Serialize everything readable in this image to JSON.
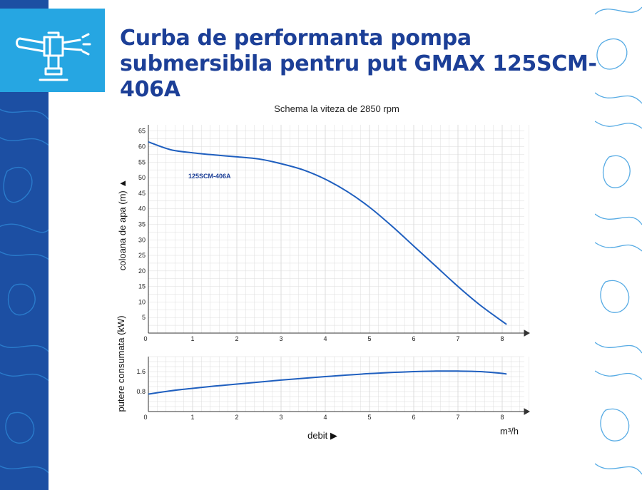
{
  "header": {
    "title_line1": "Curba de performanta pompa",
    "title_line2": "submersibila pentru put GMAX 125SCM-406A",
    "icon": "water-pump-sprinkler-icon"
  },
  "colors": {
    "title": "#1c3f97",
    "left_band": "#1c4fa3",
    "icon_box": "#26a6e2",
    "curve": "#1f5fbf",
    "series_label": "#1c3f97",
    "grid": "#dcdcdc"
  },
  "chart_data": [
    {
      "type": "line",
      "title": "Schema la viteza de 2850 rpm",
      "xlabel": "",
      "ylabel": "coloana de apa (m) ▲",
      "xlim": [
        0,
        8.5
      ],
      "ylim": [
        0,
        67
      ],
      "xticks": [
        0,
        1,
        2,
        3,
        4,
        5,
        6,
        7,
        8
      ],
      "yticks": [
        5,
        10,
        15,
        20,
        25,
        30,
        35,
        40,
        45,
        50,
        55,
        60,
        65
      ],
      "grid": true,
      "series_label_text": "125SCM-406A",
      "series": [
        {
          "name": "125SCM-406A",
          "x": [
            0,
            0.5,
            1,
            1.5,
            2,
            2.5,
            3,
            3.5,
            4,
            4.5,
            5,
            5.5,
            6,
            6.5,
            7,
            7.5,
            8,
            8.1
          ],
          "y": [
            61.5,
            59,
            58,
            57.3,
            56.7,
            56,
            54.5,
            52.5,
            49.5,
            45.5,
            40.5,
            34.5,
            28,
            21.5,
            15,
            9,
            3.8,
            2.8
          ]
        }
      ]
    },
    {
      "type": "line",
      "xlabel": "debit ▶",
      "ylabel": "putere consumata (kW)",
      "x_unit": "m³/h",
      "xlim": [
        0,
        8.5
      ],
      "ylim": [
        0,
        2.2
      ],
      "xticks": [
        0,
        1,
        2,
        3,
        4,
        5,
        6,
        7,
        8
      ],
      "yticks": [
        0.8,
        1.6
      ],
      "grid": true,
      "series": [
        {
          "name": "",
          "x": [
            0,
            0.5,
            1,
            1.5,
            2,
            3,
            4,
            5,
            6,
            6.5,
            7,
            7.5,
            8,
            8.1
          ],
          "y": [
            0.7,
            0.83,
            0.93,
            1.02,
            1.1,
            1.26,
            1.4,
            1.52,
            1.6,
            1.62,
            1.62,
            1.6,
            1.53,
            1.5
          ]
        }
      ]
    }
  ]
}
